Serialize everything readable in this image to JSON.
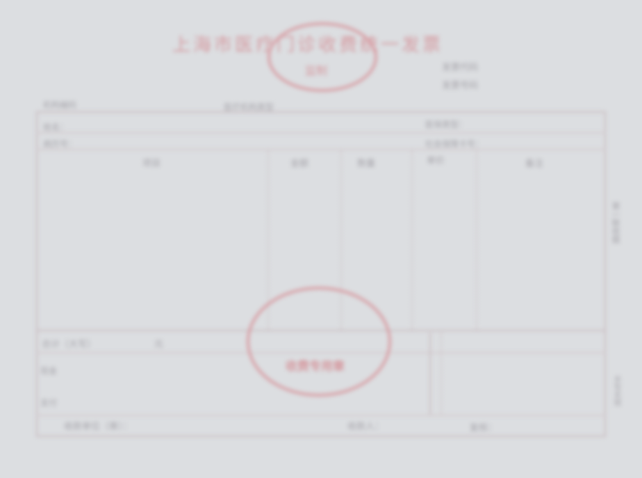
{
  "invoice": {
    "title": "上海市医疗门诊收费统一发票",
    "stamp_top_text": "监制",
    "code_line1": "发票代码",
    "code_line2": "发票号码",
    "header_left": "机构编码",
    "header_mid": "医疗机构类型",
    "row1_left": "姓名：",
    "row1_right": "医保类型：",
    "row2_left": "病历号：",
    "row2_right": "社会保障卡号：",
    "col_items": "项目",
    "col_amount": "金额",
    "col_qty": "数量",
    "col_price": "单价",
    "col_note": "备注",
    "total_label": "合计（大写）",
    "total_unit": "元",
    "pay_label": "现金",
    "pay_label2": "支付",
    "stamp_center_text": "收费专用章",
    "side_label": "第一联收据",
    "side_label_bottom": "手写无效",
    "footer_left": "收款单位（章）：",
    "footer_mid": "收款人：",
    "footer_right": "复核："
  },
  "colors": {
    "stamp_red": "#d59aa0",
    "line": "#c9bcc0",
    "paper": "#dcdee1"
  }
}
